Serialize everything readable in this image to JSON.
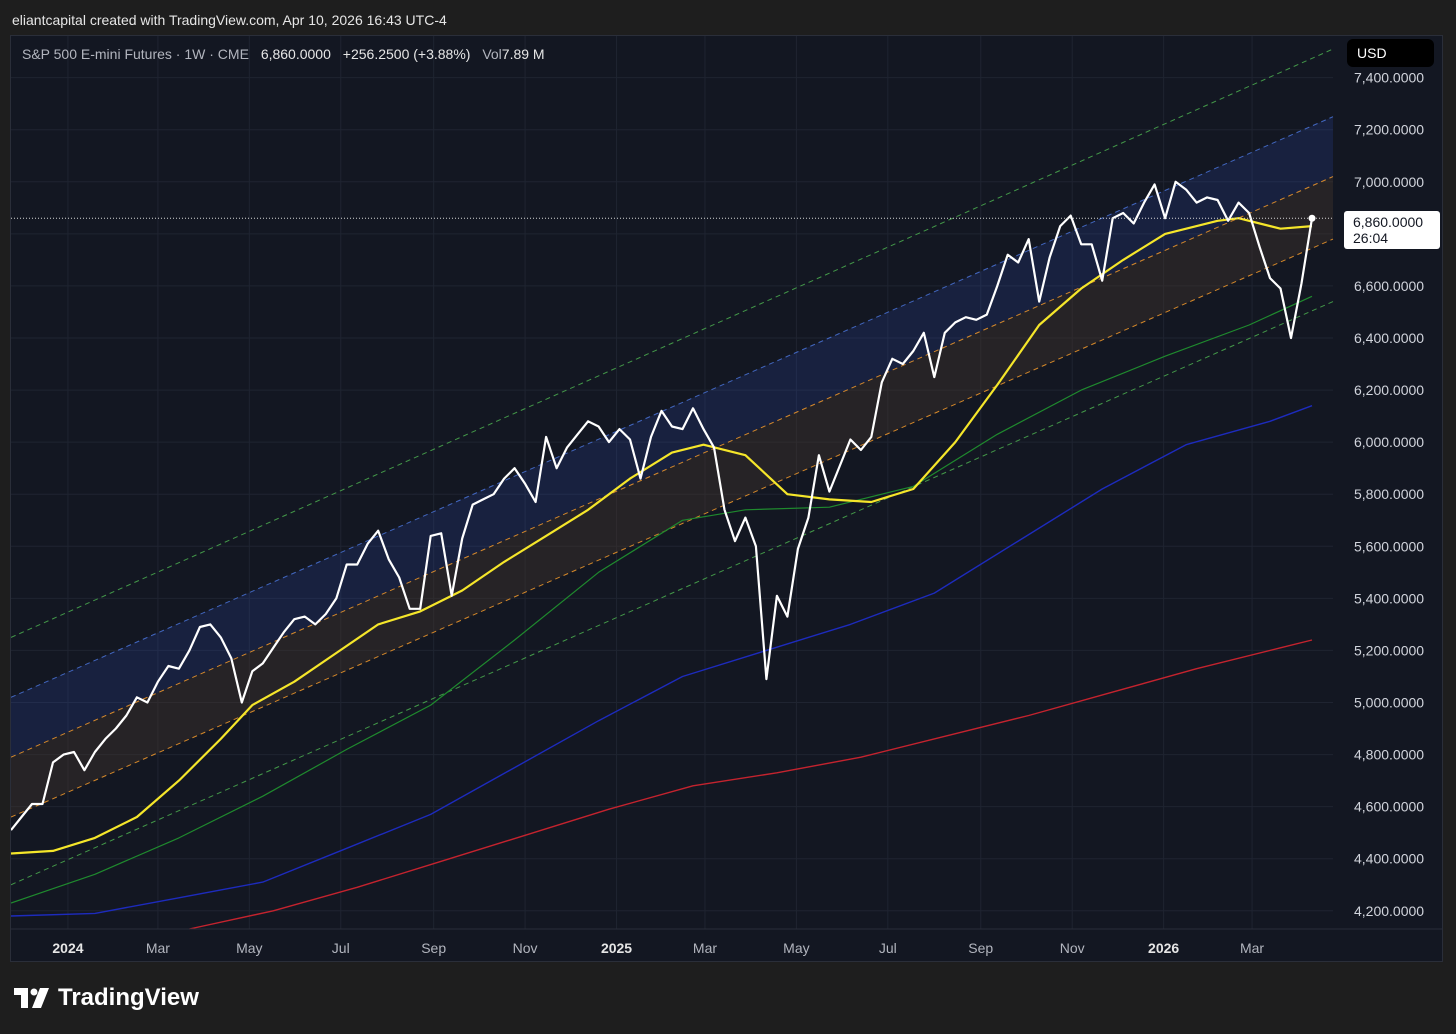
{
  "header": {
    "attribution": "eliantcapital created with TradingView.com, Apr 10, 2026 16:43 UTC-4"
  },
  "legend": {
    "symbol_line": "S&P 500 E-mini Futures · 1W · CME",
    "last_price": "6,860.0000",
    "change": "+256.2500 (+3.88%)",
    "vol_label": "Vol",
    "vol_value": "7.89 M"
  },
  "currency_button": "USD",
  "price_tag": {
    "price": "6,860.0000",
    "countdown": "26:04"
  },
  "footer": {
    "brand_name": "TradingView",
    "logo_icon": "tradingview-logo-icon"
  },
  "colors": {
    "background": "#131722",
    "price_line": "#ffffff",
    "ma_yellow": "#f5e62a",
    "ma_green": "#1f8a2e",
    "ma_blue": "#1d2bbd",
    "ma_red": "#c4232e",
    "channel_green": "#4caf50",
    "channel_blue": "#4a74d9",
    "channel_orange": "#f59b2b"
  },
  "chart_data": {
    "type": "line",
    "title": "S&P 500 E-mini Futures · 1W · CME",
    "x_axis_labels": [
      {
        "label": "2024",
        "date": "2024-01-01",
        "bold": true
      },
      {
        "label": "Mar",
        "date": "2024-03-01"
      },
      {
        "label": "May",
        "date": "2024-05-01"
      },
      {
        "label": "Jul",
        "date": "2024-07-01"
      },
      {
        "label": "Sep",
        "date": "2024-09-01"
      },
      {
        "label": "Nov",
        "date": "2024-11-01"
      },
      {
        "label": "2025",
        "date": "2025-01-01",
        "bold": true
      },
      {
        "label": "Mar",
        "date": "2025-03-01"
      },
      {
        "label": "May",
        "date": "2025-05-01"
      },
      {
        "label": "Jul",
        "date": "2025-07-01"
      },
      {
        "label": "Sep",
        "date": "2025-09-01"
      },
      {
        "label": "Nov",
        "date": "2025-11-01"
      },
      {
        "label": "2026",
        "date": "2026-01-01",
        "bold": true
      },
      {
        "label": "Mar",
        "date": "2026-03-01"
      }
    ],
    "y_axis_ticks": [
      "4,200.0000",
      "4,400.0000",
      "4,600.0000",
      "4,800.0000",
      "5,000.0000",
      "5,200.0000",
      "5,400.0000",
      "5,600.0000",
      "5,800.0000",
      "6,000.0000",
      "6,200.0000",
      "6,400.0000",
      "6,600.0000",
      "6,800.0000",
      "7,000.0000",
      "7,200.0000",
      "7,400.0000"
    ],
    "x_range": [
      "2023-11-24",
      "2026-04-24"
    ],
    "y_range": [
      4130,
      7560
    ],
    "last_price": 6860,
    "series": [
      {
        "role": "price",
        "color": "#ffffff",
        "points": [
          [
            "2023-11-24",
            4510
          ],
          [
            "2023-12-01",
            4560
          ],
          [
            "2023-12-08",
            4610
          ],
          [
            "2023-12-15",
            4610
          ],
          [
            "2023-12-22",
            4770
          ],
          [
            "2023-12-29",
            4800
          ],
          [
            "2024-01-05",
            4810
          ],
          [
            "2024-01-12",
            4740
          ],
          [
            "2024-01-19",
            4810
          ],
          [
            "2024-01-26",
            4860
          ],
          [
            "2024-02-02",
            4900
          ],
          [
            "2024-02-09",
            4950
          ],
          [
            "2024-02-16",
            5020
          ],
          [
            "2024-02-23",
            5000
          ],
          [
            "2024-03-01",
            5080
          ],
          [
            "2024-03-08",
            5140
          ],
          [
            "2024-03-15",
            5130
          ],
          [
            "2024-03-22",
            5200
          ],
          [
            "2024-03-29",
            5290
          ],
          [
            "2024-04-05",
            5300
          ],
          [
            "2024-04-12",
            5250
          ],
          [
            "2024-04-19",
            5170
          ],
          [
            "2024-04-26",
            5000
          ],
          [
            "2024-05-03",
            5120
          ],
          [
            "2024-05-10",
            5150
          ],
          [
            "2024-05-17",
            5210
          ],
          [
            "2024-05-24",
            5270
          ],
          [
            "2024-05-31",
            5320
          ],
          [
            "2024-06-07",
            5330
          ],
          [
            "2024-06-14",
            5300
          ],
          [
            "2024-06-21",
            5340
          ],
          [
            "2024-06-28",
            5400
          ],
          [
            "2024-07-05",
            5530
          ],
          [
            "2024-07-12",
            5530
          ],
          [
            "2024-07-19",
            5610
          ],
          [
            "2024-07-26",
            5660
          ],
          [
            "2024-08-02",
            5550
          ],
          [
            "2024-08-09",
            5480
          ],
          [
            "2024-08-16",
            5360
          ],
          [
            "2024-08-23",
            5360
          ],
          [
            "2024-08-30",
            5640
          ],
          [
            "2024-09-06",
            5650
          ],
          [
            "2024-09-13",
            5410
          ],
          [
            "2024-09-20",
            5630
          ],
          [
            "2024-09-27",
            5760
          ],
          [
            "2024-10-04",
            5780
          ],
          [
            "2024-10-11",
            5800
          ],
          [
            "2024-10-18",
            5860
          ],
          [
            "2024-10-25",
            5900
          ],
          [
            "2024-11-01",
            5840
          ],
          [
            "2024-11-08",
            5770
          ],
          [
            "2024-11-15",
            6020
          ],
          [
            "2024-11-22",
            5900
          ],
          [
            "2024-11-29",
            5980
          ],
          [
            "2024-12-06",
            6030
          ],
          [
            "2024-12-13",
            6080
          ],
          [
            "2024-12-20",
            6060
          ],
          [
            "2024-12-27",
            6000
          ],
          [
            "2025-01-03",
            6050
          ],
          [
            "2025-01-10",
            6010
          ],
          [
            "2025-01-17",
            5860
          ],
          [
            "2025-01-24",
            6020
          ],
          [
            "2025-01-31",
            6120
          ],
          [
            "2025-02-07",
            6060
          ],
          [
            "2025-02-14",
            6050
          ],
          [
            "2025-02-21",
            6130
          ],
          [
            "2025-02-28",
            6050
          ],
          [
            "2025-03-07",
            5980
          ],
          [
            "2025-03-14",
            5740
          ],
          [
            "2025-03-21",
            5620
          ],
          [
            "2025-03-28",
            5710
          ],
          [
            "2025-04-04",
            5600
          ],
          [
            "2025-04-11",
            5090
          ],
          [
            "2025-04-18",
            5410
          ],
          [
            "2025-04-25",
            5330
          ],
          [
            "2025-05-02",
            5590
          ],
          [
            "2025-05-09",
            5710
          ],
          [
            "2025-05-16",
            5950
          ],
          [
            "2025-05-23",
            5810
          ],
          [
            "2025-05-30",
            5910
          ],
          [
            "2025-06-06",
            6010
          ],
          [
            "2025-06-13",
            5970
          ],
          [
            "2025-06-20",
            6020
          ],
          [
            "2025-06-27",
            6230
          ],
          [
            "2025-07-04",
            6320
          ],
          [
            "2025-07-11",
            6300
          ],
          [
            "2025-07-18",
            6350
          ],
          [
            "2025-07-25",
            6420
          ],
          [
            "2025-08-01",
            6250
          ],
          [
            "2025-08-08",
            6420
          ],
          [
            "2025-08-15",
            6460
          ],
          [
            "2025-08-22",
            6480
          ],
          [
            "2025-08-29",
            6470
          ],
          [
            "2025-09-05",
            6490
          ],
          [
            "2025-09-12",
            6600
          ],
          [
            "2025-09-19",
            6720
          ],
          [
            "2025-09-26",
            6690
          ],
          [
            "2025-10-03",
            6780
          ],
          [
            "2025-10-10",
            6540
          ],
          [
            "2025-10-17",
            6710
          ],
          [
            "2025-10-24",
            6830
          ],
          [
            "2025-10-31",
            6870
          ],
          [
            "2025-11-07",
            6760
          ],
          [
            "2025-11-14",
            6760
          ],
          [
            "2025-11-21",
            6620
          ],
          [
            "2025-11-28",
            6860
          ],
          [
            "2025-12-05",
            6880
          ],
          [
            "2025-12-12",
            6840
          ],
          [
            "2025-12-19",
            6920
          ],
          [
            "2025-12-26",
            6990
          ],
          [
            "2026-01-02",
            6860
          ],
          [
            "2026-01-09",
            7000
          ],
          [
            "2026-01-16",
            6970
          ],
          [
            "2026-01-23",
            6920
          ],
          [
            "2026-01-30",
            6940
          ],
          [
            "2026-02-06",
            6930
          ],
          [
            "2026-02-13",
            6850
          ],
          [
            "2026-02-20",
            6920
          ],
          [
            "2026-02-27",
            6880
          ],
          [
            "2026-03-06",
            6750
          ],
          [
            "2026-03-13",
            6630
          ],
          [
            "2026-03-20",
            6590
          ],
          [
            "2026-03-27",
            6400
          ],
          [
            "2026-04-03",
            6610
          ],
          [
            "2026-04-10",
            6860
          ]
        ]
      },
      {
        "role": "ma-yellow",
        "color": "#f5e62a",
        "points": [
          [
            "2023-11-24",
            4420
          ],
          [
            "2023-12-22",
            4430
          ],
          [
            "2024-01-19",
            4480
          ],
          [
            "2024-02-16",
            4560
          ],
          [
            "2024-03-15",
            4700
          ],
          [
            "2024-04-12",
            4860
          ],
          [
            "2024-05-03",
            4990
          ],
          [
            "2024-05-31",
            5080
          ],
          [
            "2024-06-28",
            5190
          ],
          [
            "2024-07-26",
            5300
          ],
          [
            "2024-08-23",
            5350
          ],
          [
            "2024-09-20",
            5430
          ],
          [
            "2024-10-18",
            5540
          ],
          [
            "2024-11-15",
            5640
          ],
          [
            "2024-12-13",
            5740
          ],
          [
            "2025-01-10",
            5860
          ],
          [
            "2025-02-07",
            5960
          ],
          [
            "2025-02-28",
            5990
          ],
          [
            "2025-03-28",
            5950
          ],
          [
            "2025-04-25",
            5800
          ],
          [
            "2025-05-23",
            5780
          ],
          [
            "2025-06-20",
            5770
          ],
          [
            "2025-07-18",
            5820
          ],
          [
            "2025-08-15",
            6000
          ],
          [
            "2025-09-12",
            6220
          ],
          [
            "2025-10-10",
            6450
          ],
          [
            "2025-11-07",
            6590
          ],
          [
            "2025-12-05",
            6700
          ],
          [
            "2026-01-02",
            6800
          ],
          [
            "2026-02-06",
            6850
          ],
          [
            "2026-02-20",
            6860
          ],
          [
            "2026-03-20",
            6820
          ],
          [
            "2026-04-10",
            6830
          ]
        ]
      },
      {
        "role": "ma-green",
        "color": "#1f8a2e",
        "points": [
          [
            "2023-11-24",
            4230
          ],
          [
            "2024-01-19",
            4340
          ],
          [
            "2024-03-15",
            4480
          ],
          [
            "2024-05-10",
            4640
          ],
          [
            "2024-07-05",
            4820
          ],
          [
            "2024-08-30",
            4990
          ],
          [
            "2024-10-25",
            5240
          ],
          [
            "2024-12-20",
            5500
          ],
          [
            "2025-02-14",
            5700
          ],
          [
            "2025-03-28",
            5740
          ],
          [
            "2025-05-23",
            5750
          ],
          [
            "2025-07-18",
            5830
          ],
          [
            "2025-09-12",
            6030
          ],
          [
            "2025-11-07",
            6200
          ],
          [
            "2026-01-02",
            6330
          ],
          [
            "2026-02-27",
            6450
          ],
          [
            "2026-04-10",
            6560
          ]
        ]
      },
      {
        "role": "ma-blue",
        "color": "#1d2bbd",
        "points": [
          [
            "2023-11-24",
            4180
          ],
          [
            "2024-01-19",
            4190
          ],
          [
            "2024-03-15",
            4250
          ],
          [
            "2024-05-10",
            4310
          ],
          [
            "2024-07-05",
            4440
          ],
          [
            "2024-08-30",
            4570
          ],
          [
            "2024-10-25",
            4750
          ],
          [
            "2024-12-20",
            4930
          ],
          [
            "2025-02-14",
            5100
          ],
          [
            "2025-04-11",
            5200
          ],
          [
            "2025-06-06",
            5300
          ],
          [
            "2025-08-01",
            5420
          ],
          [
            "2025-09-26",
            5620
          ],
          [
            "2025-11-21",
            5820
          ],
          [
            "2026-01-16",
            5990
          ],
          [
            "2026-03-13",
            6080
          ],
          [
            "2026-04-10",
            6140
          ]
        ]
      },
      {
        "role": "ma-red",
        "color": "#c4232e",
        "points": [
          [
            "2024-03-22",
            4130
          ],
          [
            "2024-05-17",
            4200
          ],
          [
            "2024-07-12",
            4290
          ],
          [
            "2024-09-06",
            4390
          ],
          [
            "2024-11-01",
            4490
          ],
          [
            "2024-12-27",
            4590
          ],
          [
            "2025-02-21",
            4680
          ],
          [
            "2025-04-18",
            4730
          ],
          [
            "2025-06-13",
            4790
          ],
          [
            "2025-08-08",
            4870
          ],
          [
            "2025-10-03",
            4950
          ],
          [
            "2025-11-28",
            5040
          ],
          [
            "2026-01-23",
            5130
          ],
          [
            "2026-03-20",
            5210
          ],
          [
            "2026-04-10",
            5240
          ]
        ]
      }
    ],
    "channels": [
      {
        "role": "channel-outer-upper",
        "color": "#4caf50",
        "dash": true,
        "from": [
          "2023-11-24",
          5250
        ],
        "to": [
          "2026-04-24",
          7510
        ]
      },
      {
        "role": "channel-upper",
        "color": "#4a74d9",
        "dash": true,
        "from": [
          "2023-11-24",
          5020
        ],
        "to": [
          "2026-04-24",
          7250
        ]
      },
      {
        "role": "channel-mid-upper",
        "color": "#f59b2b",
        "dash": true,
        "from": [
          "2023-11-24",
          4790
        ],
        "to": [
          "2026-04-24",
          7020
        ]
      },
      {
        "role": "channel-mid-lower",
        "color": "#f59b2b",
        "dash": true,
        "from": [
          "2023-11-24",
          4560
        ],
        "to": [
          "2026-04-24",
          6780
        ]
      },
      {
        "role": "channel-lower",
        "color": "#4caf50",
        "dash": true,
        "from": [
          "2023-11-24",
          4300
        ],
        "to": [
          "2026-04-24",
          6540
        ]
      }
    ]
  }
}
